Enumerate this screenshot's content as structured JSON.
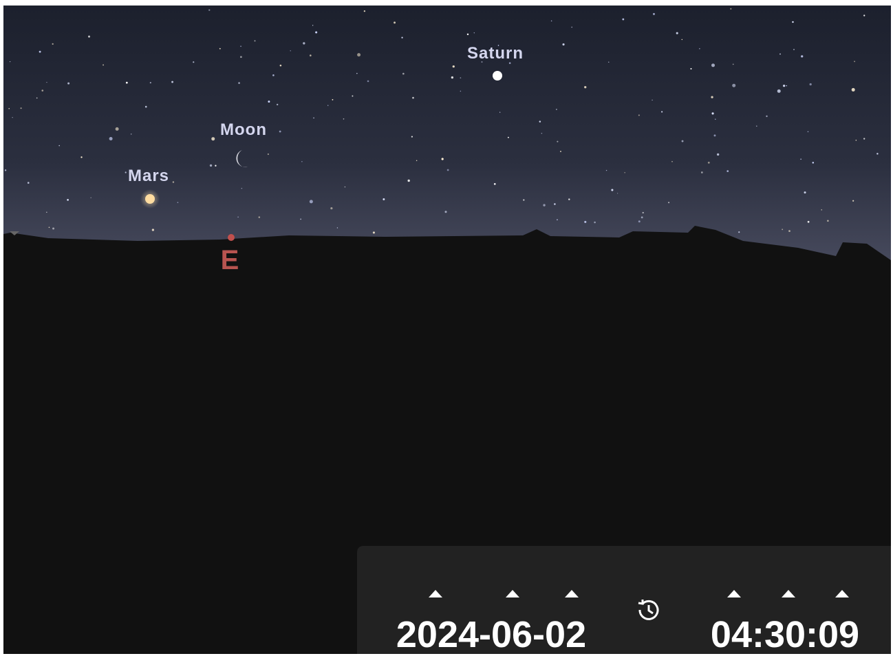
{
  "sky": {
    "objects": [
      {
        "label": "Saturn"
      },
      {
        "label": "Moon"
      },
      {
        "label": "Mars"
      }
    ],
    "compass": "E"
  },
  "time_panel": {
    "date": "2024-06-02",
    "time": "04:30:09"
  }
}
